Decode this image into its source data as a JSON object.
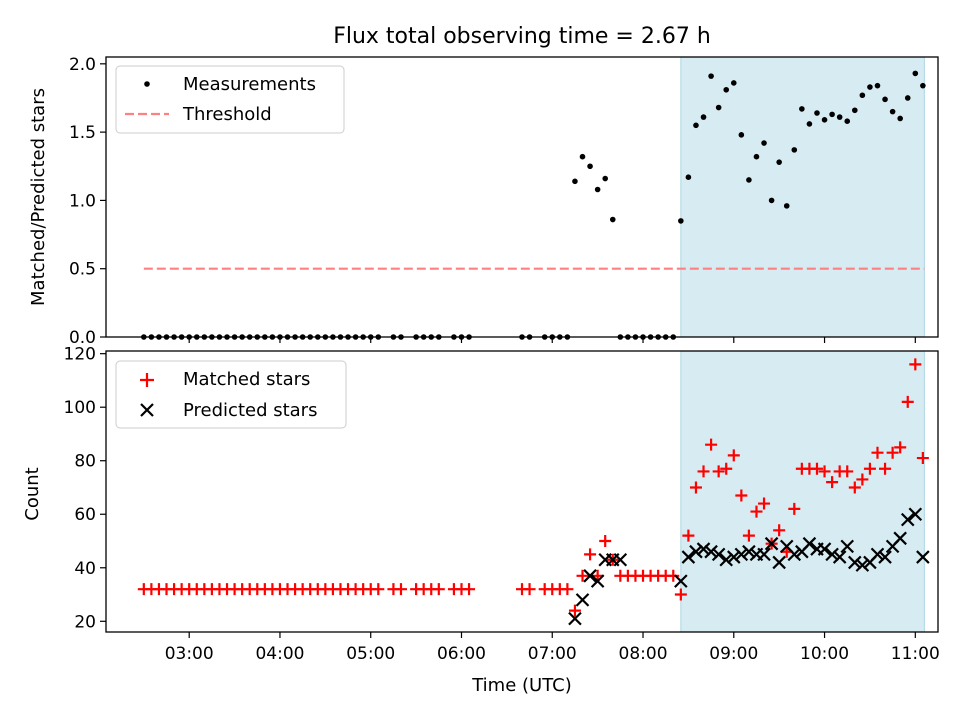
{
  "title": "Flux total observing time = 2.67 h",
  "chart_data": [
    {
      "type": "scatter",
      "panel": "top",
      "ylabel": "Matched/Predicted stars",
      "ylim": [
        0,
        2.05
      ],
      "yticks": [
        "0.0",
        "0.5",
        "1.0",
        "1.5",
        "2.0"
      ],
      "shaded_region": {
        "x_start": "08:25",
        "x_end": "11:06",
        "color": "#add8e6"
      },
      "threshold": {
        "name": "Threshold",
        "y": 0.5,
        "x_start": "02:30",
        "x_end": "11:06",
        "color": "#ff8080"
      },
      "legend": {
        "placement": "top-left",
        "entries": [
          "Measurements",
          "Threshold"
        ]
      },
      "series": [
        {
          "name": "Measurements",
          "color": "#000000",
          "x": [
            "02:30",
            "02:35",
            "02:40",
            "02:45",
            "02:50",
            "02:55",
            "03:00",
            "03:05",
            "03:10",
            "03:15",
            "03:20",
            "03:25",
            "03:30",
            "03:35",
            "03:40",
            "03:45",
            "03:50",
            "03:55",
            "04:00",
            "04:05",
            "04:10",
            "04:15",
            "04:20",
            "04:25",
            "04:30",
            "04:35",
            "04:40",
            "04:45",
            "04:50",
            "04:55",
            "05:00",
            "05:05",
            "05:15",
            "05:20",
            "05:30",
            "05:35",
            "05:40",
            "05:45",
            "05:55",
            "06:00",
            "06:05",
            "06:40",
            "06:45",
            "06:55",
            "07:00",
            "07:05",
            "07:10",
            "07:15",
            "07:20",
            "07:25",
            "07:30",
            "07:35",
            "07:40",
            "07:45",
            "07:50",
            "07:55",
            "08:00",
            "08:05",
            "08:10",
            "08:15",
            "08:20",
            "08:25",
            "08:30",
            "08:35",
            "08:40",
            "08:45",
            "08:50",
            "08:55",
            "09:00",
            "09:05",
            "09:10",
            "09:15",
            "09:20",
            "09:25",
            "09:30",
            "09:35",
            "09:40",
            "09:45",
            "09:50",
            "09:55",
            "10:00",
            "10:05",
            "10:10",
            "10:15",
            "10:20",
            "10:25",
            "10:30",
            "10:35",
            "10:40",
            "10:45",
            "10:50",
            "10:55",
            "11:00",
            "11:05"
          ],
          "y": [
            0,
            0,
            0,
            0,
            0,
            0,
            0,
            0,
            0,
            0,
            0,
            0,
            0,
            0,
            0,
            0,
            0,
            0,
            0,
            0,
            0,
            0,
            0,
            0,
            0,
            0,
            0,
            0,
            0,
            0,
            0,
            0,
            0,
            0,
            0,
            0,
            0,
            0,
            0,
            0,
            0,
            0,
            0,
            0,
            0,
            0,
            0,
            1.14,
            1.32,
            1.25,
            1.08,
            1.16,
            0.86,
            0,
            0,
            0,
            0,
            0,
            0,
            0,
            0,
            0.85,
            1.17,
            1.55,
            1.61,
            1.91,
            1.68,
            1.81,
            1.86,
            1.48,
            1.15,
            1.32,
            1.42,
            1.0,
            1.28,
            0.96,
            1.37,
            1.67,
            1.56,
            1.64,
            1.59,
            1.63,
            1.61,
            1.58,
            1.66,
            1.77,
            1.83,
            1.84,
            1.74,
            1.65,
            1.6,
            1.75,
            1.93,
            1.84
          ]
        }
      ]
    },
    {
      "type": "scatter",
      "panel": "bottom",
      "xlabel": "Time (UTC)",
      "ylabel": "Count",
      "ylim": [
        16,
        121
      ],
      "xlim": [
        "02:05",
        "11:15"
      ],
      "xticks": [
        "03:00",
        "04:00",
        "05:00",
        "06:00",
        "07:00",
        "08:00",
        "09:00",
        "10:00",
        "11:00"
      ],
      "yticks": [
        "20",
        "40",
        "60",
        "80",
        "100",
        "120"
      ],
      "shaded_region": {
        "x_start": "08:25",
        "x_end": "11:06",
        "color": "#add8e6"
      },
      "legend": {
        "placement": "top-left",
        "entries": [
          "Matched stars",
          "Predicted stars"
        ]
      },
      "series": [
        {
          "name": "Matched stars",
          "color": "#ff0000",
          "marker": "plus",
          "x": [
            "02:30",
            "02:35",
            "02:40",
            "02:45",
            "02:50",
            "02:55",
            "03:00",
            "03:05",
            "03:10",
            "03:15",
            "03:20",
            "03:25",
            "03:30",
            "03:35",
            "03:40",
            "03:45",
            "03:50",
            "03:55",
            "04:00",
            "04:05",
            "04:10",
            "04:15",
            "04:20",
            "04:25",
            "04:30",
            "04:35",
            "04:40",
            "04:45",
            "04:50",
            "04:55",
            "05:00",
            "05:05",
            "05:15",
            "05:20",
            "05:30",
            "05:35",
            "05:40",
            "05:45",
            "05:55",
            "06:00",
            "06:05",
            "06:40",
            "06:45",
            "06:55",
            "07:00",
            "07:05",
            "07:10",
            "07:15",
            "07:20",
            "07:25",
            "07:30",
            "07:35",
            "07:40",
            "07:45",
            "07:50",
            "07:55",
            "08:00",
            "08:05",
            "08:10",
            "08:15",
            "08:20",
            "08:25",
            "08:30",
            "08:35",
            "08:40",
            "08:45",
            "08:50",
            "08:55",
            "09:00",
            "09:05",
            "09:10",
            "09:15",
            "09:20",
            "09:25",
            "09:30",
            "09:35",
            "09:40",
            "09:45",
            "09:50",
            "09:55",
            "10:00",
            "10:05",
            "10:10",
            "10:15",
            "10:20",
            "10:25",
            "10:30",
            "10:35",
            "10:40",
            "10:45",
            "10:50",
            "10:55",
            "11:00",
            "11:05"
          ],
          "y": [
            32,
            32,
            32,
            32,
            32,
            32,
            32,
            32,
            32,
            32,
            32,
            32,
            32,
            32,
            32,
            32,
            32,
            32,
            32,
            32,
            32,
            32,
            32,
            32,
            32,
            32,
            32,
            32,
            32,
            32,
            32,
            32,
            32,
            32,
            32,
            32,
            32,
            32,
            32,
            32,
            32,
            32,
            32,
            32,
            32,
            32,
            32,
            24,
            37,
            45,
            37,
            50,
            43,
            37,
            37,
            37,
            37,
            37,
            37,
            37,
            37,
            30,
            52,
            70,
            76,
            86,
            76,
            77,
            82,
            67,
            52,
            61,
            64,
            49,
            54,
            46,
            62,
            77,
            77,
            77,
            76,
            72,
            76,
            76,
            70,
            73,
            77,
            83,
            77,
            83,
            85,
            102,
            116,
            81
          ]
        },
        {
          "name": "Predicted stars",
          "color": "#000000",
          "marker": "x",
          "x": [
            "07:15",
            "07:20",
            "07:25",
            "07:30",
            "07:35",
            "07:40",
            "07:45",
            "08:25",
            "08:30",
            "08:35",
            "08:40",
            "08:45",
            "08:50",
            "08:55",
            "09:00",
            "09:05",
            "09:10",
            "09:15",
            "09:20",
            "09:25",
            "09:30",
            "09:35",
            "09:40",
            "09:45",
            "09:50",
            "09:55",
            "10:00",
            "10:05",
            "10:10",
            "10:15",
            "10:20",
            "10:25",
            "10:30",
            "10:35",
            "10:40",
            "10:45",
            "10:50",
            "10:55",
            "11:00",
            "11:05"
          ],
          "y": [
            21,
            28,
            37,
            35,
            43,
            43,
            43,
            35,
            44,
            46,
            47,
            46,
            45,
            43,
            44,
            45,
            46,
            45,
            45,
            49,
            42,
            48,
            45,
            46,
            49,
            47,
            47,
            45,
            44,
            48,
            42,
            41,
            42,
            45,
            44,
            48,
            51,
            58,
            60,
            44
          ]
        }
      ]
    }
  ]
}
